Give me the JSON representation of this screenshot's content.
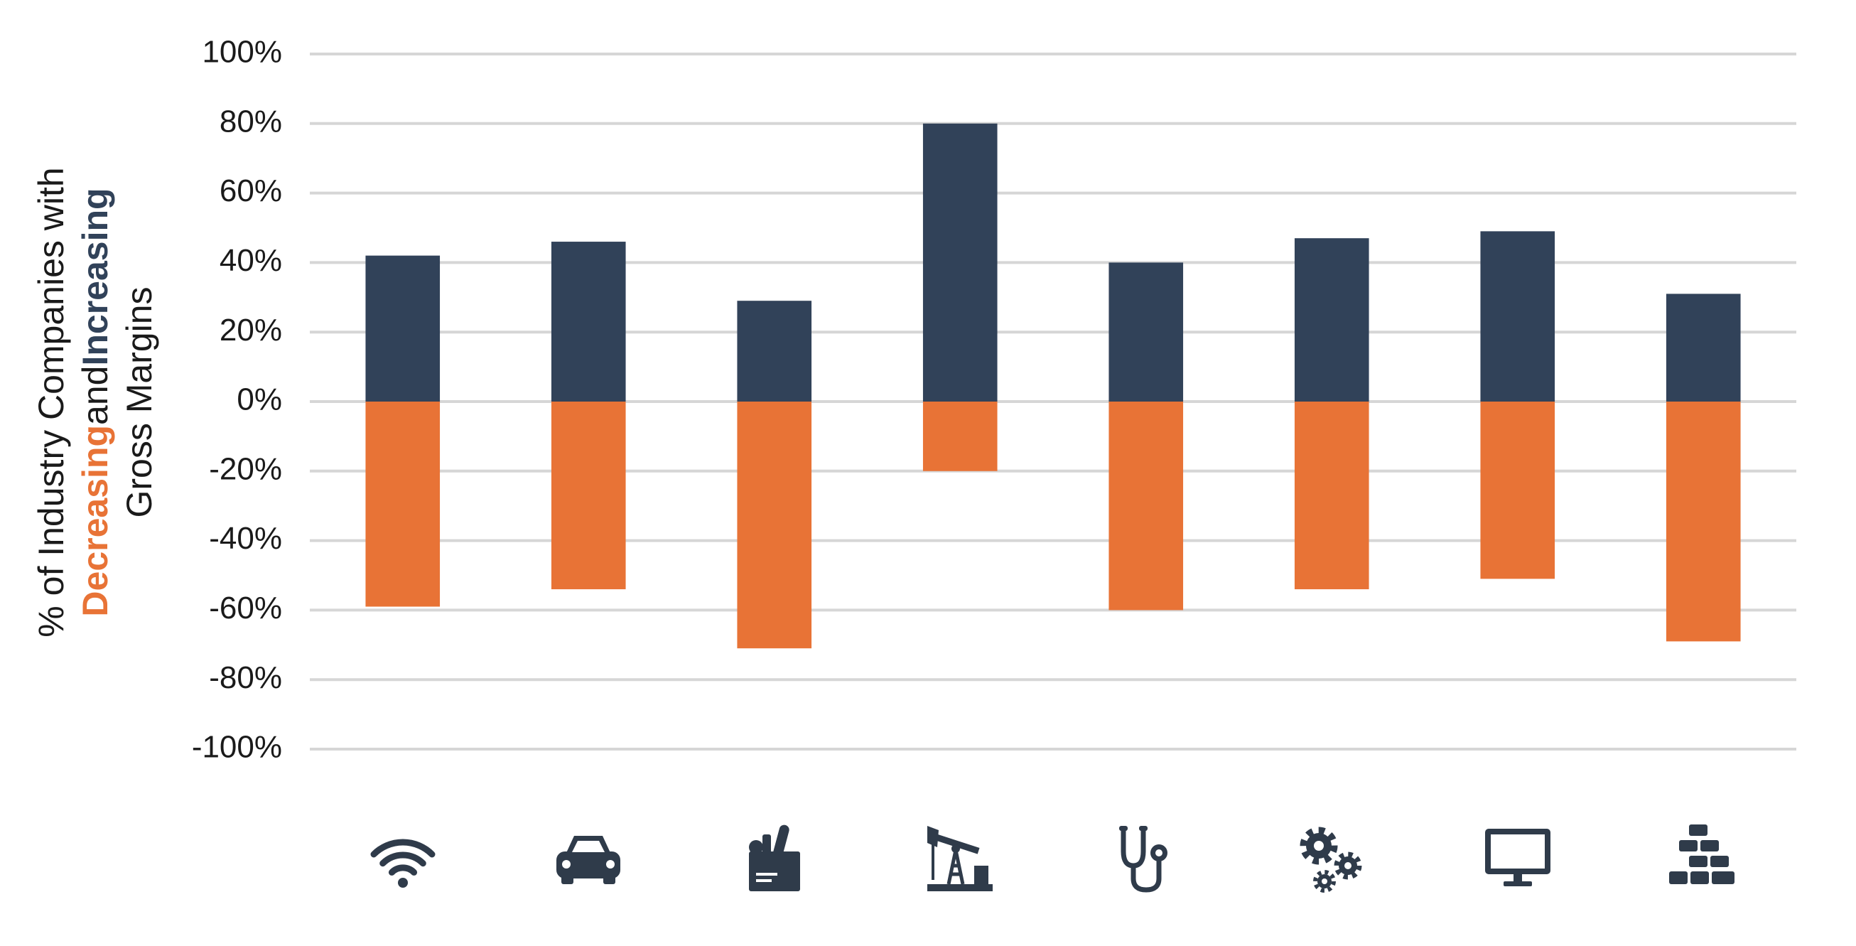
{
  "chart_data": {
    "type": "bar",
    "stacked": true,
    "categories": [
      null,
      null,
      null,
      null,
      null,
      null,
      null,
      null
    ],
    "series": [
      {
        "name": "Increasing",
        "color": "#314259",
        "values": [
          42,
          46,
          29,
          80,
          40,
          47,
          49,
          31
        ]
      },
      {
        "name": "Decreasing",
        "color": "#e87336",
        "values": [
          -59,
          -54,
          -71,
          -20,
          -60,
          -54,
          -51,
          -69
        ]
      }
    ],
    "y_label": {
      "line1": "% of Industry Companies with",
      "joiner": "and",
      "line3": "Gross Margins"
    },
    "ylim": [
      -100,
      100
    ],
    "yticks": [
      {
        "value": -100,
        "label": "-100%"
      },
      {
        "value": -80,
        "label": "-80%"
      },
      {
        "value": -60,
        "label": "-60%"
      },
      {
        "value": -40,
        "label": "-40%"
      },
      {
        "value": -20,
        "label": "-20%"
      },
      {
        "value": 0,
        "label": "0%"
      },
      {
        "value": 20,
        "label": "20%"
      },
      {
        "value": 40,
        "label": "40%"
      },
      {
        "value": 60,
        "label": "60%"
      },
      {
        "value": 80,
        "label": "80%"
      },
      {
        "value": 100,
        "label": "100%"
      }
    ],
    "grid": true
  }
}
